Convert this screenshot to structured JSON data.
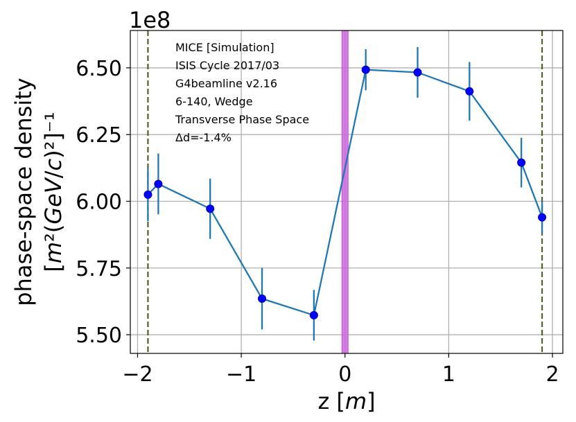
{
  "chart_data": {
    "type": "scatter",
    "title": "",
    "xlabel": "z [m]",
    "ylabel_line1": "phase-space density",
    "ylabel_line2": "[m²(GeV/c)²]⁻¹",
    "y_offset_text": "1e8",
    "xlim": [
      -2.07,
      2.1
    ],
    "ylim": [
      5.43,
      6.64
    ],
    "y_scale": 100000000,
    "x_ticks": [
      -2,
      -1,
      0,
      1,
      2
    ],
    "x_tick_labels": [
      "−2",
      "−1",
      "0",
      "1",
      "2"
    ],
    "y_ticks": [
      5.5,
      5.75,
      6.0,
      6.25,
      6.5
    ],
    "y_tick_labels": [
      "5.50",
      "5.75",
      "6.00",
      "6.25",
      "6.50"
    ],
    "grid": true,
    "series": [
      {
        "x": [
          -1.9,
          -1.8,
          -1.3,
          -0.8,
          -0.3,
          0.2,
          0.7,
          1.2,
          1.7,
          1.9
        ],
        "y": [
          6.025,
          6.065,
          5.972,
          5.635,
          5.573,
          6.493,
          6.483,
          6.412,
          6.145,
          5.94
        ],
        "yerr": [
          0.1,
          0.114,
          0.113,
          0.115,
          0.095,
          0.077,
          0.095,
          0.11,
          0.093,
          0.06
        ],
        "line_color": "#1f77b4",
        "marker_color": "#0000ff"
      }
    ],
    "vertical_lines": [
      {
        "x": -1.9,
        "style": "dashed",
        "color": "#4f6228"
      },
      {
        "x": 1.9,
        "style": "dashed",
        "color": "#4f6228"
      }
    ],
    "vertical_band": {
      "x_from": -0.03,
      "x_to": 0.03,
      "color": "#cc66dd"
    },
    "annotations": [
      "MICE [Simulation]",
      "ISIS Cycle 2017/03",
      "G4beamline v2.16",
      "6-140, Wedge",
      "Transverse Phase Space",
      "Δd=-1.4%"
    ]
  }
}
